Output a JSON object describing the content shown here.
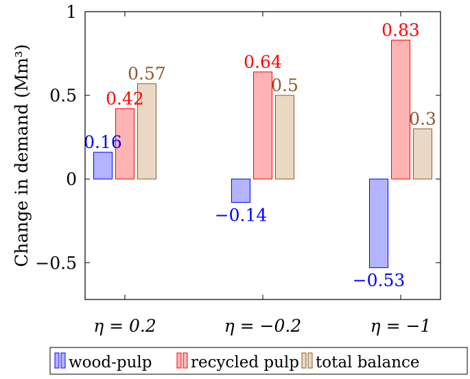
{
  "chart_data": {
    "type": "bar",
    "categories": [
      "η = 0.2",
      "η = −0.2",
      "η = −1"
    ],
    "ylabel": "Change in demand (Mm³)",
    "xlabel": "",
    "ylim": [
      -0.72,
      1.0
    ],
    "yticks": [
      -0.5,
      0,
      0.5,
      1
    ],
    "ytick_labels": [
      "−0.5",
      "0",
      "0.5",
      "1"
    ],
    "grid": false,
    "legend_position": "bottom",
    "series": [
      {
        "name": "wood-pulp",
        "values": [
          0.16,
          -0.14,
          -0.53
        ],
        "labels": [
          "0.16",
          "−0.14",
          "−0.53"
        ],
        "fill": "#b3b3ff",
        "stroke": "#0000ff",
        "label_color": "#0000ff"
      },
      {
        "name": "recycled pulp",
        "values": [
          0.42,
          0.64,
          0.83
        ],
        "labels": [
          "0.42",
          "0.64",
          "0.83"
        ],
        "fill": "#ffb3b3",
        "stroke": "#ff0000",
        "label_color": "#ff0000"
      },
      {
        "name": "total balance",
        "values": [
          0.57,
          0.5,
          0.3
        ],
        "labels": [
          "0.57",
          "0.5",
          "0.3"
        ],
        "fill": "#ead8c2",
        "stroke": "#8a5a2b",
        "label_color": "#8a5a2b"
      }
    ]
  }
}
